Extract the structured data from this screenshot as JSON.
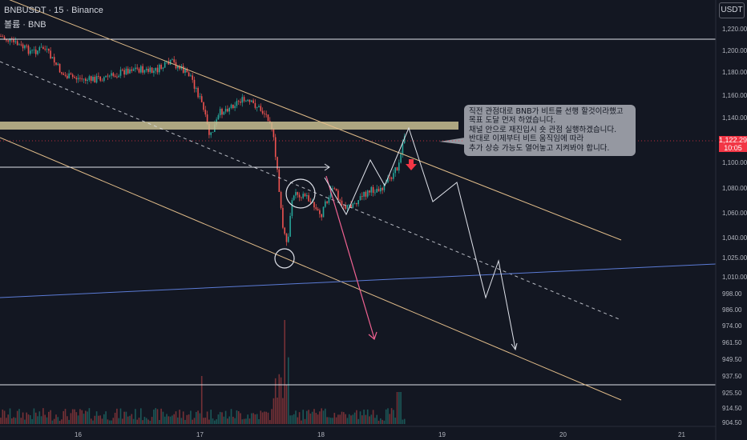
{
  "header": {
    "symbol_line": "BNBUSDT · 15 · Binance",
    "volume_line": "볼륨 · BNB"
  },
  "currency_button": "USDT",
  "price_tag": {
    "price": "1,122.29",
    "countdown": "10:05",
    "color": "#f23645"
  },
  "y_axis_labels": [
    "1,220.00",
    "1,200.00",
    "1,180.00",
    "1,160.00",
    "1,140.00",
    "1,122.29",
    "1,100.00",
    "1,080.00",
    "1,060.00",
    "1,040.00",
    "1,025.00",
    "1,010.00",
    "998.00",
    "986.00",
    "974.00",
    "961.50",
    "949.50",
    "937.50",
    "925.50",
    "914.50",
    "904.50"
  ],
  "x_axis_labels": [
    "16",
    "17",
    "18",
    "19",
    "20",
    "21"
  ],
  "annotation": {
    "lines": [
      "직전 관점대로 BNB가 비트를 선행 할것이라했고",
      "목표 도달 먼저 하였습니다.",
      "채널 안으로 재진입시 숏 관점 실행하겠습니다.",
      "반대로 이제부터 비트 움직임에 따라",
      "추가 상승 가능도 열어놓고 지켜봐야 합니다."
    ]
  },
  "colors": {
    "background": "#131722",
    "up": "#26a69a",
    "down": "#ef5350",
    "channel": "#e2bd8a",
    "support_blue": "#5b7bd5",
    "projection_white": "#e0e3eb",
    "projection_pink": "#f06292",
    "zone": "#c9bf92"
  }
}
